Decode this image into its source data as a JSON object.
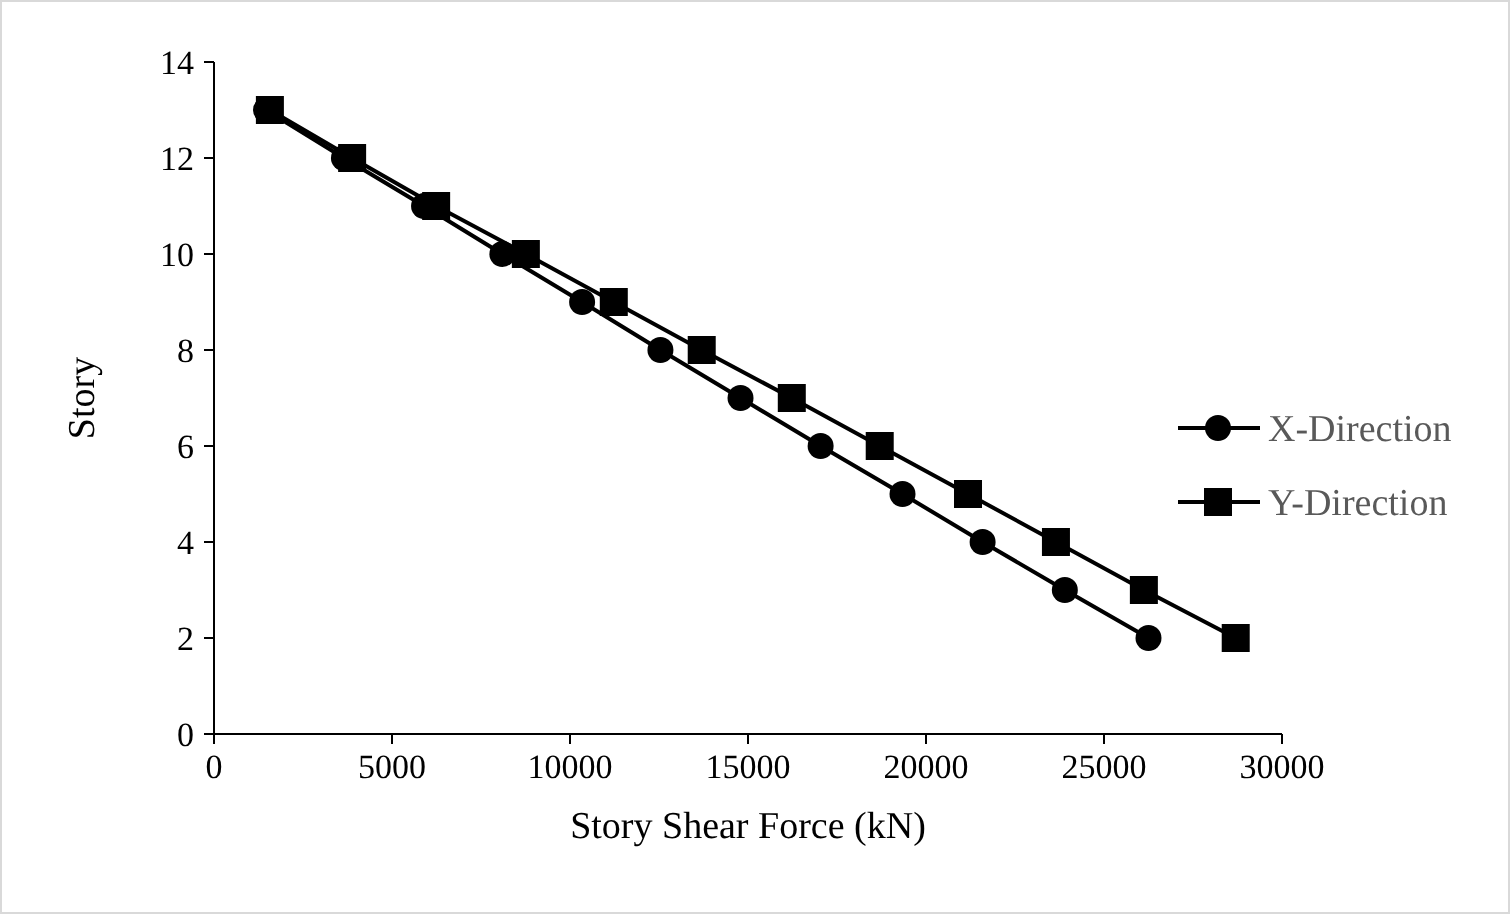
{
  "chart_data": {
    "type": "line",
    "xlabel": "Story Shear Force (kN)",
    "ylabel": "Story",
    "xlim": [
      0,
      30000
    ],
    "xticks": [
      0,
      5000,
      10000,
      15000,
      20000,
      25000,
      30000
    ],
    "ylim": [
      0,
      14
    ],
    "yticks": [
      0,
      2,
      4,
      6,
      8,
      10,
      12,
      14
    ],
    "grid": false,
    "legend": "right",
    "line_style": "solid",
    "series": [
      {
        "name": "X-Direction",
        "color": "#000000",
        "marker": "circle",
        "x": [
          1460,
          3650,
          5900,
          8100,
          10340,
          12540,
          14790,
          17040,
          19340,
          21590,
          23900,
          26250
        ],
        "values": [
          13,
          12,
          11,
          10,
          9,
          8,
          7,
          6,
          5,
          4,
          3,
          2
        ]
      },
      {
        "name": "Y-Direction",
        "color": "#000000",
        "marker": "square",
        "x": [
          1570,
          3880,
          6240,
          8760,
          11230,
          13700,
          16230,
          18700,
          21180,
          23650,
          26120,
          28700
        ],
        "values": [
          13,
          12,
          11,
          10,
          9,
          8,
          7,
          6,
          5,
          4,
          3,
          2
        ]
      }
    ]
  }
}
